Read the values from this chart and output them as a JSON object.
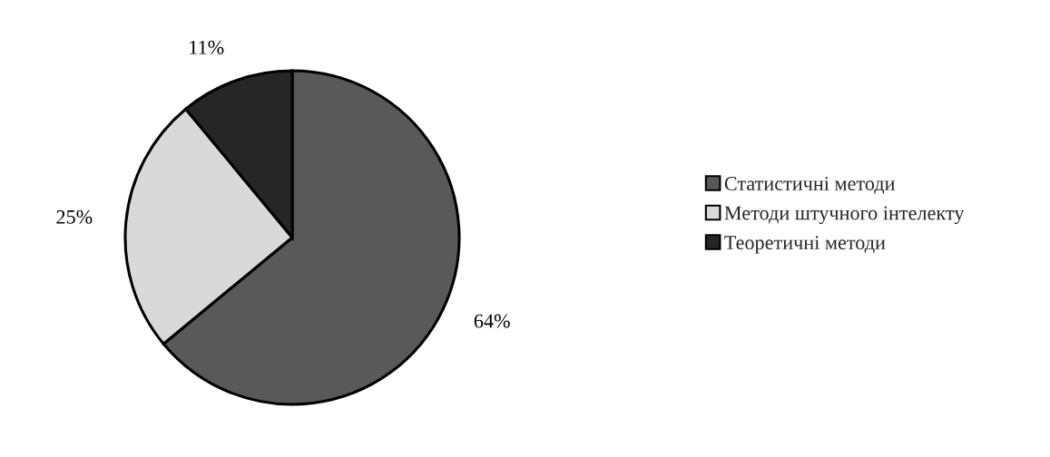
{
  "chart_data": {
    "type": "pie",
    "categories": [
      "Статистичні методи",
      "Методи штучного інтелекту",
      "Теоретичні методи"
    ],
    "values": [
      64,
      25,
      11
    ],
    "colors": [
      "#595959",
      "#d9d9d9",
      "#262626"
    ],
    "value_labels": [
      "64%",
      "25%",
      "11%"
    ],
    "legend": "right"
  }
}
